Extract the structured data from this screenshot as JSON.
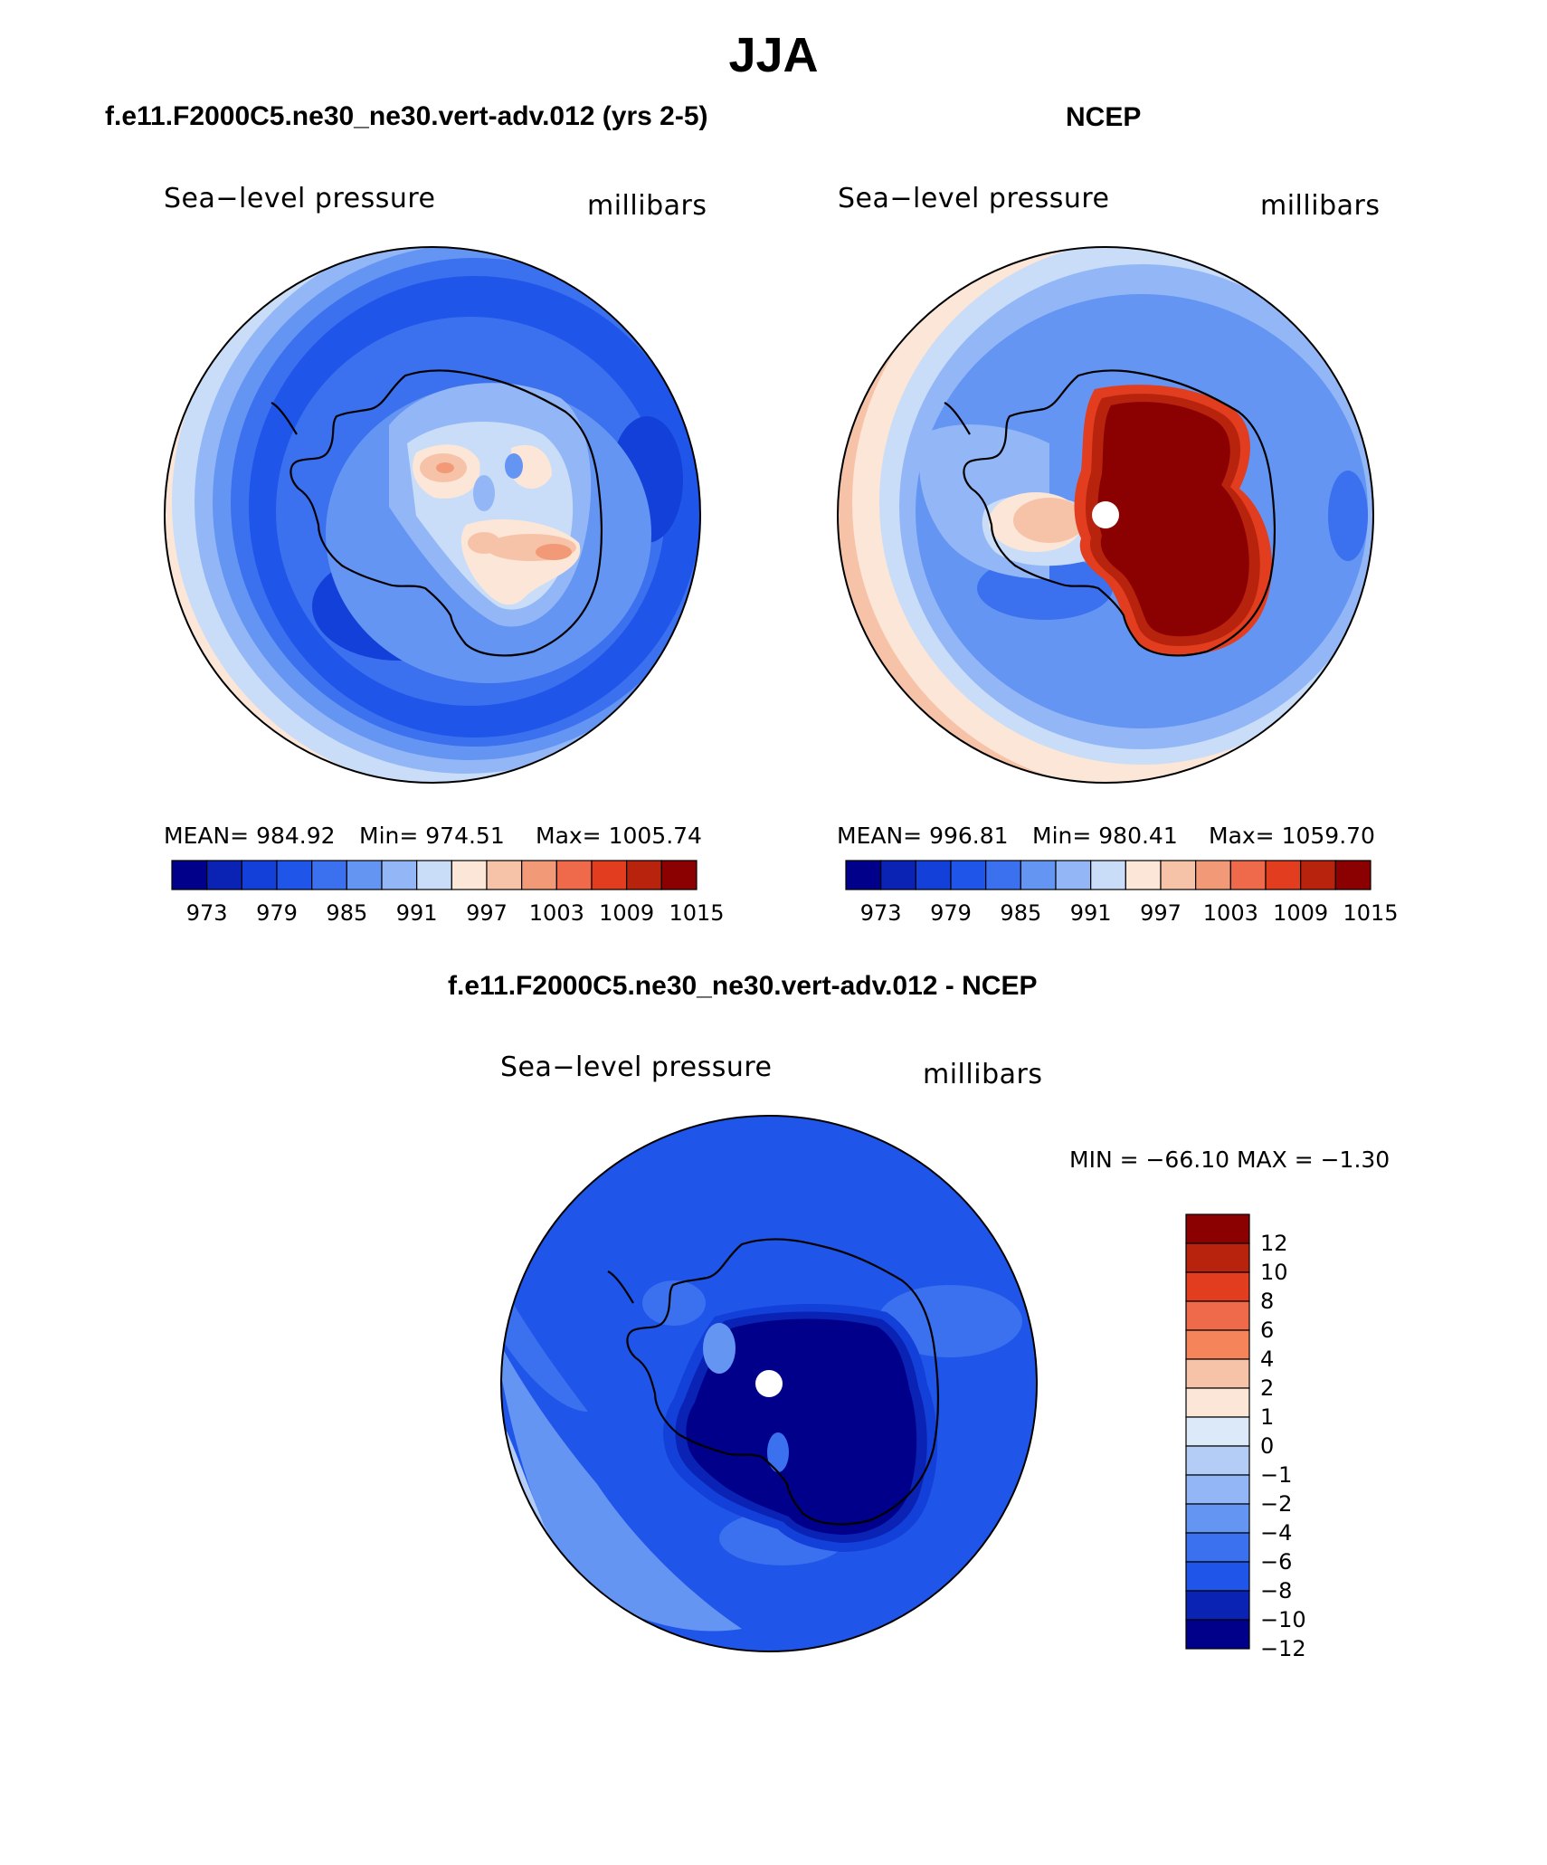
{
  "title": "JJA",
  "panels": {
    "model": {
      "case_title": "f.e11.F2000C5.ne30_ne30.vert-adv.012 (yrs 2-5)",
      "variable": "Sea−level pressure",
      "units": "millibars",
      "stats": {
        "mean": "MEAN= 984.92",
        "min": "Min= 974.51",
        "max": "Max= 1005.74"
      }
    },
    "obs": {
      "case_title": "NCEP",
      "variable": "Sea−level pressure",
      "units": "millibars",
      "stats": {
        "mean": "MEAN= 996.81",
        "min": "Min= 980.41",
        "max": "Max= 1059.70"
      }
    },
    "diff": {
      "case_title": "f.e11.F2000C5.ne30_ne30.vert-adv.012 - NCEP",
      "variable": "Sea−level pressure",
      "units": "millibars",
      "minmax": "MIN = −66.10 MAX =  −1.30"
    }
  },
  "chart_data": [
    {
      "type": "heatmap",
      "projection": "south-polar-stereographic",
      "title": "f.e11.F2000C5.ne30_ne30.vert-adv.012 (yrs 2-5)",
      "variable": "Sea-level pressure",
      "units": "millibars",
      "mean": 984.92,
      "min": 974.51,
      "max": 1005.74,
      "levels": [
        973,
        976,
        979,
        982,
        985,
        988,
        991,
        994,
        997,
        1000,
        1003,
        1006,
        1009,
        1012,
        1015
      ],
      "tick_labels": [
        "973",
        "979",
        "985",
        "991",
        "997",
        "1003",
        "1009",
        "1015"
      ],
      "colors": [
        "#00008a",
        "#0a23b4",
        "#1240d8",
        "#1f55e9",
        "#3b70ef",
        "#6595f3",
        "#93b7f6",
        "#c9ddf8",
        "#fbe6d8",
        "#f7c3a8",
        "#f29a78",
        "#ef6a4a",
        "#e13d1e",
        "#b8230e",
        "#8b0000"
      ]
    },
    {
      "type": "heatmap",
      "projection": "south-polar-stereographic",
      "title": "NCEP",
      "variable": "Sea-level pressure",
      "units": "millibars",
      "mean": 996.81,
      "min": 980.41,
      "max": 1059.7,
      "levels": [
        973,
        976,
        979,
        982,
        985,
        988,
        991,
        994,
        997,
        1000,
        1003,
        1006,
        1009,
        1012,
        1015
      ],
      "tick_labels": [
        "973",
        "979",
        "985",
        "991",
        "997",
        "1003",
        "1009",
        "1015"
      ],
      "colors": [
        "#00008a",
        "#0a23b4",
        "#1240d8",
        "#1f55e9",
        "#3b70ef",
        "#6595f3",
        "#93b7f6",
        "#c9ddf8",
        "#fbe6d8",
        "#f7c3a8",
        "#f29a78",
        "#ef6a4a",
        "#e13d1e",
        "#b8230e",
        "#8b0000"
      ]
    },
    {
      "type": "heatmap",
      "projection": "south-polar-stereographic",
      "title": "f.e11.F2000C5.ne30_ne30.vert-adv.012 - NCEP",
      "variable": "Sea-level pressure",
      "units": "millibars",
      "min": -66.1,
      "max": -1.3,
      "levels": [
        12,
        10,
        8,
        6,
        4,
        2,
        1,
        0,
        -1,
        -2,
        -4,
        -6,
        -8,
        -10,
        -12
      ],
      "tick_labels": [
        "12",
        "10",
        "8",
        "6",
        "4",
        "2",
        "1",
        "0",
        "−1",
        "−2",
        "−4",
        "−6",
        "−8",
        "−10",
        "−12"
      ],
      "colors": [
        "#8b0000",
        "#b8230e",
        "#e13d1e",
        "#ef6a4a",
        "#f5845a",
        "#f7c3a8",
        "#fbe6d8",
        "#dce9f8",
        "#b4cdf6",
        "#93b7f6",
        "#6595f3",
        "#3b70ef",
        "#1f55e9",
        "#0a23b4",
        "#00008a"
      ]
    }
  ]
}
